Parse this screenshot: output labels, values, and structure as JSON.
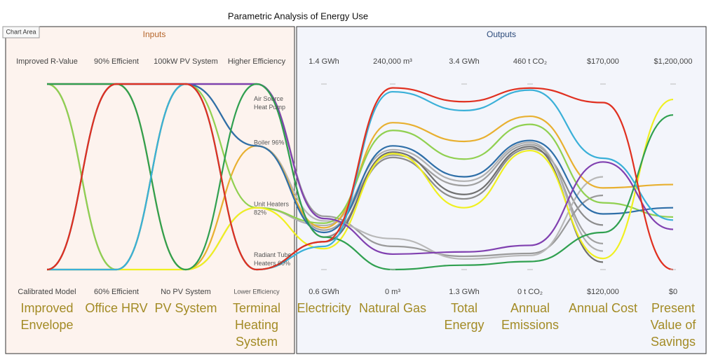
{
  "tooltip": "Chart Area",
  "chart_data": {
    "type": "parallel",
    "title": "Parametric Analysis of Energy Use",
    "groups": [
      {
        "title": "Inputs",
        "color": "#b5652a"
      },
      {
        "title": "Outputs",
        "color": "#2b4a7a"
      }
    ],
    "axes": [
      {
        "name": [
          "Improved",
          "Envelope"
        ],
        "levels": [
          "Improved R-Value",
          "Calibrated Model"
        ]
      },
      {
        "name": [
          "Office HRV"
        ],
        "levels": [
          "90% Efficient",
          "60% Efficient"
        ]
      },
      {
        "name": [
          "PV System"
        ],
        "levels": [
          "100kW PV System",
          "No PV System"
        ]
      },
      {
        "name": [
          "Terminal",
          "Heating",
          "System"
        ],
        "top_label": "Higher Efficiency",
        "bottom_label": "Lower Efficiency",
        "levels": [
          "Air Source Heat Pump",
          "Boiler 96%",
          "Unit Heaters 82%",
          "Radiant Tube Heaters 60%"
        ]
      },
      {
        "name": [
          "Electricity"
        ],
        "ylim": [
          0.6,
          1.4
        ],
        "yticks": [
          {
            "value": 1.4,
            "label": "1.4 GWh"
          },
          {
            "value": 0.6,
            "label": "0.6 GWh"
          }
        ]
      },
      {
        "name": [
          "Natural Gas"
        ],
        "ylim": [
          0,
          240000
        ],
        "yticks": [
          {
            "value": 240000,
            "label": "240,000 m³"
          },
          {
            "value": 0,
            "label": "0 m³"
          }
        ]
      },
      {
        "name": [
          "Total",
          "Energy"
        ],
        "ylim": [
          1.3,
          3.4
        ],
        "yticks": [
          {
            "value": 3.4,
            "label": "3.4 GWh"
          },
          {
            "value": 1.3,
            "label": "1.3 GWh"
          }
        ]
      },
      {
        "name": [
          "Annual",
          "Emissions"
        ],
        "ylim": [
          0,
          460
        ],
        "yticks": [
          {
            "value": 460,
            "label": "460 t CO₂"
          },
          {
            "value": 0,
            "label": "0 t CO₂"
          }
        ]
      },
      {
        "name": [
          "Annual Cost"
        ],
        "ylim": [
          120000,
          170000
        ],
        "yticks": [
          {
            "value": 170000,
            "label": "$170,000"
          },
          {
            "value": 120000,
            "label": "$120,000"
          }
        ]
      },
      {
        "name": [
          "Present",
          "Value of",
          "Savings"
        ],
        "ylim": [
          0,
          1200000
        ],
        "yticks": [
          {
            "value": 1200000,
            "label": "$1,200,000"
          },
          {
            "value": 0,
            "label": "$0"
          }
        ]
      }
    ],
    "series": [
      {
        "color": "#a0a0a0",
        "values": [
          "Calibrated Model",
          "90% Efficient",
          "100kW PV System",
          "Boiler 96%",
          0.77,
          148000,
          2.25,
          310,
          127000,
          null
        ]
      },
      {
        "color": "#8c8c8c",
        "values": [
          "Improved R-Value",
          "60% Efficient",
          "100kW PV System",
          "Air Source Heat Pump",
          0.74,
          145000,
          2.1,
          300,
          132000,
          null
        ]
      },
      {
        "color": "#b0b0b0",
        "values": [
          "Calibrated Model",
          "90% Efficient",
          "No PV System",
          "Unit Heaters 82%",
          0.79,
          155000,
          2.3,
          315,
          125000,
          null
        ]
      },
      {
        "color": "#999999",
        "values": [
          "Improved R-Value",
          "90% Efficient",
          "100kW PV System",
          "Air Source Heat Pump",
          0.83,
          30000,
          1.45,
          40,
          140000,
          null
        ]
      },
      {
        "color": "#707070",
        "values": [
          "Calibrated Model",
          "60% Efficient",
          "100kW PV System",
          "Radiant Tube Heaters 60%",
          0.72,
          152000,
          2.15,
          305,
          122000,
          null
        ]
      },
      {
        "color": "#b8b8b8",
        "values": [
          "Improved R-Value",
          "90% Efficient",
          "100kW PV System",
          "Boiler 96%",
          0.81,
          40000,
          1.42,
          35,
          145000,
          null
        ]
      },
      {
        "color": "#e8b030",
        "values": [
          "Improved R-Value",
          "90% Efficient",
          "No PV System",
          "Boiler 96%",
          0.78,
          190000,
          2.75,
          380,
          142000,
          550000
        ]
      },
      {
        "color": "#90d050",
        "values": [
          "Improved R-Value",
          "60% Efficient",
          "100kW PV System",
          "Unit Heaters 82%",
          0.8,
          180000,
          2.55,
          360,
          138000,
          340000
        ]
      },
      {
        "color": "#2f6fa8",
        "values": [
          "Calibrated Model",
          "90% Efficient",
          "100kW PV System",
          "Boiler 96%",
          0.76,
          160000,
          2.35,
          320,
          135000,
          400000
        ]
      },
      {
        "color": "#f0f020",
        "values": [
          "Calibrated Model",
          "60% Efficient",
          "No PV System",
          "Unit Heaters 82%",
          0.69,
          150000,
          2.0,
          295,
          123000,
          1100000
        ]
      },
      {
        "color": "#8040b0",
        "values": [
          "Improved R-Value",
          "90% Efficient",
          "100kW PV System",
          "Air Source Heat Pump",
          0.82,
          20000,
          1.5,
          60,
          149000,
          260000
        ]
      },
      {
        "color": "#30a050",
        "values": [
          "Improved R-Value",
          "90% Efficient",
          "No PV System",
          "Air Source Heat Pump",
          0.74,
          0,
          1.35,
          20,
          130000,
          1000000
        ]
      },
      {
        "color": "#3ab0d8",
        "values": [
          "Calibrated Model",
          "60% Efficient",
          "100kW PV System",
          "Radiant Tube Heaters 60%",
          0.7,
          230000,
          3.1,
          445,
          150000,
          320000
        ]
      },
      {
        "color": "#e03020",
        "values": [
          "Calibrated Model",
          "90% Efficient",
          "100kW PV System",
          "Radiant Tube Heaters 60%",
          0.72,
          235000,
          3.2,
          450,
          165000,
          0
        ]
      }
    ]
  }
}
